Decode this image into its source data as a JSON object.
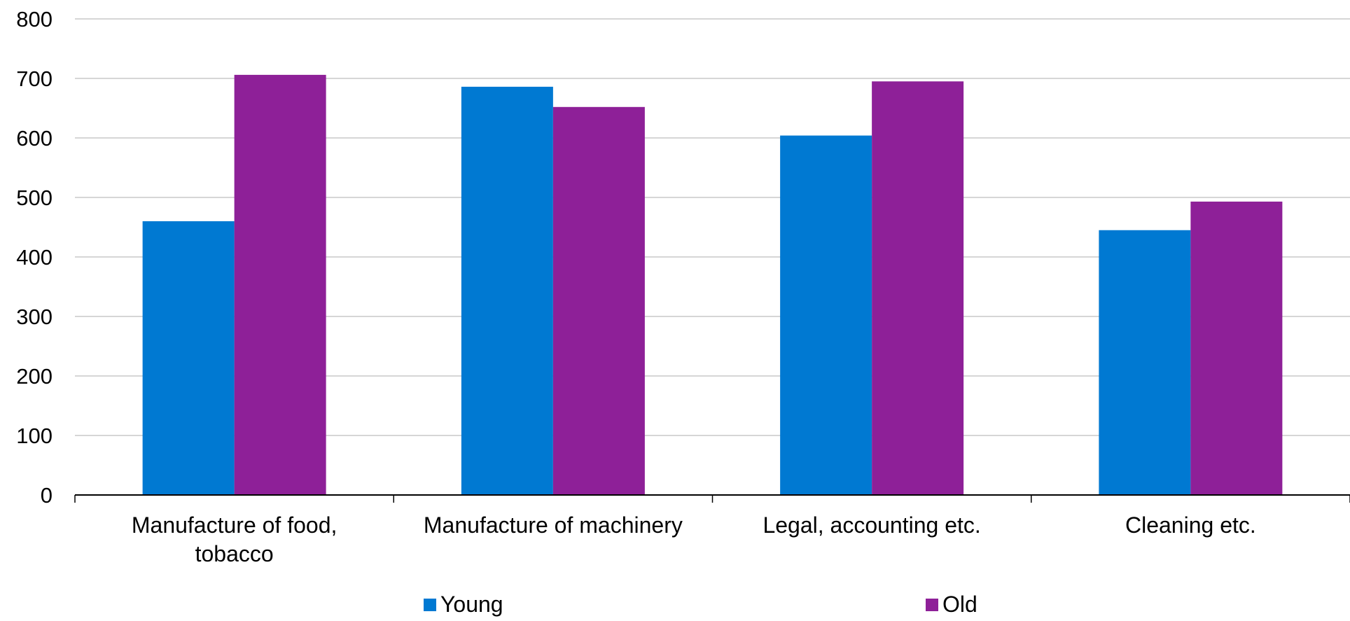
{
  "chart_data": {
    "type": "bar",
    "categories": [
      [
        "Manufacture of food,",
        "tobacco"
      ],
      [
        "Manufacture of machinery"
      ],
      [
        "Legal, accounting etc."
      ],
      [
        "Cleaning etc."
      ]
    ],
    "series": [
      {
        "name": "Young",
        "color": "#0079D2",
        "values": [
          460,
          686,
          604,
          445
        ]
      },
      {
        "name": "Old",
        "color": "#8E2098",
        "values": [
          706,
          652,
          695,
          493
        ]
      }
    ],
    "ylim": [
      0,
      800
    ],
    "yticks": [
      0,
      100,
      200,
      300,
      400,
      500,
      600,
      700,
      800
    ],
    "grid": true,
    "legend_position": "bottom"
  }
}
